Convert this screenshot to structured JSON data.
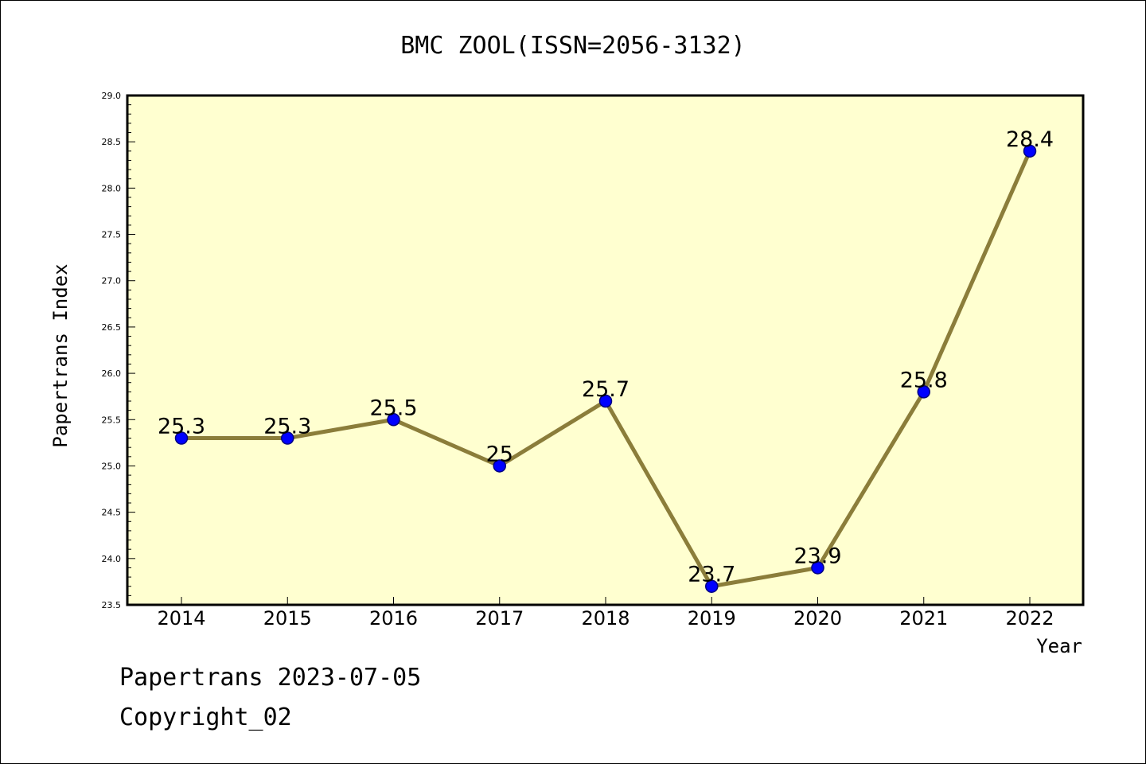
{
  "chart_data": {
    "type": "line",
    "title": "BMC ZOOL(ISSN=2056-3132)",
    "xlabel": "Year",
    "ylabel": "Papertrans Index",
    "x": [
      "2014",
      "2015",
      "2016",
      "2017",
      "2018",
      "2019",
      "2020",
      "2021",
      "2022"
    ],
    "series": [
      {
        "values": [
          25.3,
          25.3,
          25.5,
          25.0,
          25.7,
          23.7,
          23.9,
          25.8,
          28.4
        ],
        "data_labels": [
          "25.3",
          "25.3",
          "25.5",
          "25",
          "25.7",
          "23.7",
          "23.9",
          "25.8",
          "28.4"
        ]
      }
    ],
    "ylim": [
      23.5,
      29.0
    ],
    "yticks": [
      "23.5",
      "24.0",
      "24.5",
      "25.0",
      "25.5",
      "26.0",
      "26.5",
      "27.0",
      "27.5",
      "28.0",
      "28.5",
      "29.0"
    ],
    "grid": false,
    "legend": "none",
    "colors": {
      "plot_background": "#ffffd0",
      "line": "#8b7d3a",
      "marker_fill": "#0000ff",
      "marker_edge": "#000080"
    }
  },
  "footer": {
    "line1": "Papertrans 2023-07-05",
    "line2": "Copyright_02"
  }
}
